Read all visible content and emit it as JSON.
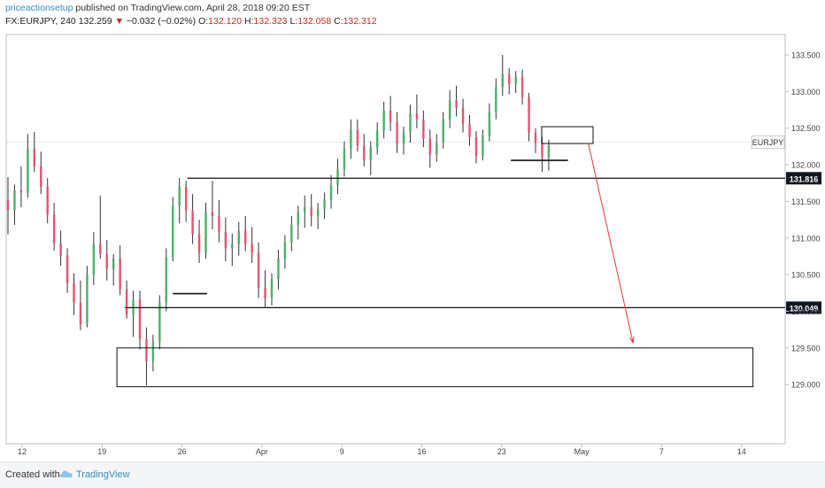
{
  "header": {
    "author": "priceactionsetup",
    "published": " published on TradingView.com, April 28, 2018 09:20 EST",
    "symbol_interval": "FX:EURJPY, 240",
    "last": "132.259",
    "change": "−0.032 (−0.02%)",
    "o_label": "O:",
    "o_value": "132.120",
    "h_label": "H:",
    "h_value": "132.323",
    "l_label": "L:",
    "l_value": "132.058",
    "c_label": "C:",
    "c_value": "132.312",
    "down_arrow": "▼"
  },
  "footer": {
    "created_with": "Created with",
    "brand": "TradingView"
  },
  "colors": {
    "up": "#4caf6a",
    "down": "#e5536f",
    "wick": "#333333",
    "arrow": "#e53935",
    "level": "#111111"
  },
  "chart_data": {
    "type": "candlestick",
    "symbol": "EURJPY",
    "interval": "240",
    "ylim": [
      128.8,
      133.7
    ],
    "y_ticks": [
      "133.500",
      "133.000",
      "132.500",
      "132.000",
      "131.500",
      "131.000",
      "130.500",
      "130.000",
      "129.500",
      "129.000"
    ],
    "y_tick_values": [
      133.5,
      133.0,
      132.5,
      132.0,
      131.5,
      131.0,
      130.5,
      130.0,
      129.5,
      129.0
    ],
    "x_ticks": [
      "12",
      "19",
      "26",
      "Apr",
      "9",
      "16",
      "23",
      "May",
      "7",
      "14"
    ],
    "x_tick_days": [
      0,
      7,
      14,
      21,
      28,
      35,
      42,
      49,
      56,
      63
    ],
    "current_price_label": "EURJPY",
    "current_price": 132.31,
    "levels": [
      {
        "label": "131.816",
        "value": 131.816,
        "from_day": 14.5
      },
      {
        "label": "130.049",
        "value": 130.049,
        "from_day": 9
      }
    ],
    "zones": [
      {
        "name": "demand-zone",
        "day_from": 8.3,
        "day_to": 64,
        "low": 128.97,
        "high": 129.5
      },
      {
        "name": "supply-box",
        "day_from": 45.5,
        "day_to": 50,
        "low": 132.29,
        "high": 132.52
      }
    ],
    "short_lines": [
      {
        "day_from": 13.2,
        "day_to": 16.2,
        "value": 130.24
      },
      {
        "day_from": 42.8,
        "day_to": 47.8,
        "value": 132.06
      }
    ],
    "projection_arrow": {
      "from_day": 49.6,
      "from_value": 132.28,
      "to_day": 53.5,
      "to_value": 129.57
    },
    "ohlc": [
      [
        131.52,
        131.83,
        131.05,
        131.38
      ],
      [
        131.38,
        131.73,
        131.18,
        131.65
      ],
      [
        131.65,
        131.98,
        131.42,
        131.62
      ],
      [
        131.62,
        132.42,
        131.55,
        132.22
      ],
      [
        132.22,
        132.45,
        131.9,
        131.98
      ],
      [
        131.98,
        132.18,
        131.6,
        131.7
      ],
      [
        131.7,
        131.82,
        131.2,
        131.32
      ],
      [
        131.32,
        131.48,
        130.83,
        130.93
      ],
      [
        130.93,
        131.1,
        130.62,
        130.76
      ],
      [
        130.76,
        130.86,
        130.25,
        130.38
      ],
      [
        130.38,
        130.52,
        129.95,
        130.12
      ],
      [
        130.12,
        130.42,
        129.74,
        129.82
      ],
      [
        129.82,
        130.62,
        129.78,
        130.5
      ],
      [
        130.5,
        131.08,
        130.36,
        130.92
      ],
      [
        130.92,
        131.58,
        130.72,
        130.78
      ],
      [
        130.78,
        130.97,
        130.42,
        130.58
      ],
      [
        130.58,
        130.78,
        130.35,
        130.72
      ],
      [
        130.72,
        130.9,
        130.22,
        130.3
      ],
      [
        130.3,
        130.42,
        129.9,
        129.95
      ],
      [
        129.95,
        130.28,
        129.65,
        130.16
      ],
      [
        130.16,
        130.28,
        129.48,
        129.62
      ],
      [
        129.62,
        129.78,
        128.99,
        129.32
      ],
      [
        129.32,
        129.68,
        129.18,
        129.58
      ],
      [
        129.58,
        130.22,
        129.48,
        130.12
      ],
      [
        130.12,
        130.86,
        130.0,
        130.74
      ],
      [
        130.74,
        131.56,
        130.68,
        131.44
      ],
      [
        131.44,
        131.82,
        131.2,
        131.7
      ],
      [
        131.7,
        131.78,
        131.22,
        131.38
      ],
      [
        131.38,
        131.6,
        130.92,
        131.05
      ],
      [
        131.05,
        131.25,
        130.66,
        130.8
      ],
      [
        130.8,
        131.48,
        130.72,
        131.36
      ],
      [
        131.36,
        131.78,
        131.12,
        131.3
      ],
      [
        131.3,
        131.52,
        130.94,
        131.08
      ],
      [
        131.08,
        131.28,
        130.68,
        130.86
      ],
      [
        130.86,
        131.06,
        130.62,
        130.92
      ],
      [
        130.92,
        131.22,
        130.76,
        131.1
      ],
      [
        131.1,
        131.3,
        130.82,
        130.92
      ],
      [
        130.92,
        131.15,
        130.66,
        130.8
      ],
      [
        130.8,
        130.94,
        130.18,
        130.32
      ],
      [
        130.32,
        130.56,
        130.06,
        130.18
      ],
      [
        130.18,
        130.52,
        130.08,
        130.44
      ],
      [
        130.44,
        130.84,
        130.3,
        130.72
      ],
      [
        130.72,
        131.04,
        130.58,
        130.94
      ],
      [
        130.94,
        131.3,
        130.82,
        131.18
      ],
      [
        131.18,
        131.44,
        130.98,
        131.36
      ],
      [
        131.36,
        131.58,
        131.14,
        131.42
      ],
      [
        131.42,
        131.6,
        131.16,
        131.3
      ],
      [
        131.3,
        131.48,
        131.12,
        131.4
      ],
      [
        131.4,
        131.62,
        131.26,
        131.52
      ],
      [
        131.52,
        131.86,
        131.4,
        131.72
      ],
      [
        131.72,
        132.08,
        131.6,
        131.94
      ],
      [
        131.94,
        132.32,
        131.84,
        132.22
      ],
      [
        132.22,
        132.62,
        132.08,
        132.48
      ],
      [
        132.48,
        132.62,
        132.18,
        132.26
      ],
      [
        132.26,
        132.42,
        131.98,
        132.06
      ],
      [
        132.06,
        132.32,
        131.86,
        132.24
      ],
      [
        132.24,
        132.58,
        132.14,
        132.46
      ],
      [
        132.46,
        132.86,
        132.36,
        132.74
      ],
      [
        132.74,
        132.94,
        132.46,
        132.58
      ],
      [
        132.58,
        132.72,
        132.16,
        132.28
      ],
      [
        132.28,
        132.52,
        132.14,
        132.44
      ],
      [
        132.44,
        132.82,
        132.3,
        132.7
      ],
      [
        132.7,
        132.96,
        132.5,
        132.62
      ],
      [
        132.62,
        132.74,
        132.24,
        132.36
      ],
      [
        132.36,
        132.48,
        131.96,
        132.14
      ],
      [
        132.14,
        132.42,
        132.04,
        132.3
      ],
      [
        132.3,
        132.72,
        132.22,
        132.62
      ],
      [
        132.62,
        133.02,
        132.5,
        132.88
      ],
      [
        132.88,
        133.08,
        132.66,
        132.78
      ],
      [
        132.78,
        132.9,
        132.44,
        132.56
      ],
      [
        132.56,
        132.68,
        132.26,
        132.38
      ],
      [
        132.38,
        132.46,
        132.02,
        132.12
      ],
      [
        132.12,
        132.48,
        132.06,
        132.4
      ],
      [
        132.4,
        132.84,
        132.32,
        132.72
      ],
      [
        132.72,
        133.18,
        132.62,
        133.06
      ],
      [
        133.06,
        133.5,
        132.94,
        133.24
      ],
      [
        133.24,
        133.32,
        132.96,
        133.1
      ],
      [
        133.1,
        133.28,
        132.98,
        133.2
      ],
      [
        133.2,
        133.3,
        132.82,
        132.92
      ],
      [
        132.92,
        132.98,
        132.32,
        132.44
      ],
      [
        132.44,
        132.5,
        132.16,
        132.3
      ],
      [
        132.3,
        132.38,
        131.9,
        132.1
      ],
      [
        132.1,
        132.34,
        131.92,
        132.26
      ]
    ]
  }
}
